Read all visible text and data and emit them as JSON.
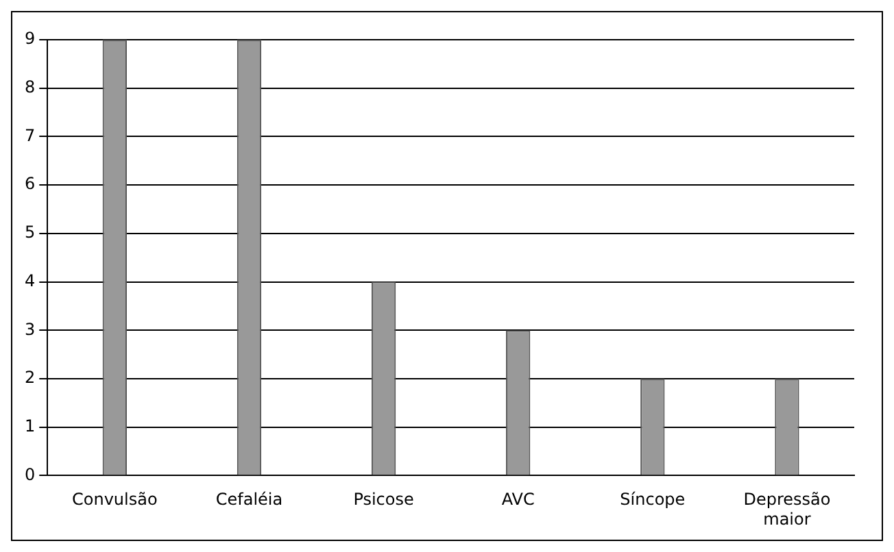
{
  "chart_data": {
    "type": "bar",
    "categories": [
      "Convulsão",
      "Cefaléia",
      "Psicose",
      "AVC",
      "Síncope",
      "Depressão maior"
    ],
    "values": [
      9,
      9,
      4,
      3,
      2,
      2
    ],
    "color": "#999999",
    "ylim": [
      0,
      9
    ],
    "yticks": [
      0,
      1,
      2,
      3,
      4,
      5,
      6,
      7,
      8,
      9
    ],
    "grid": "y"
  }
}
